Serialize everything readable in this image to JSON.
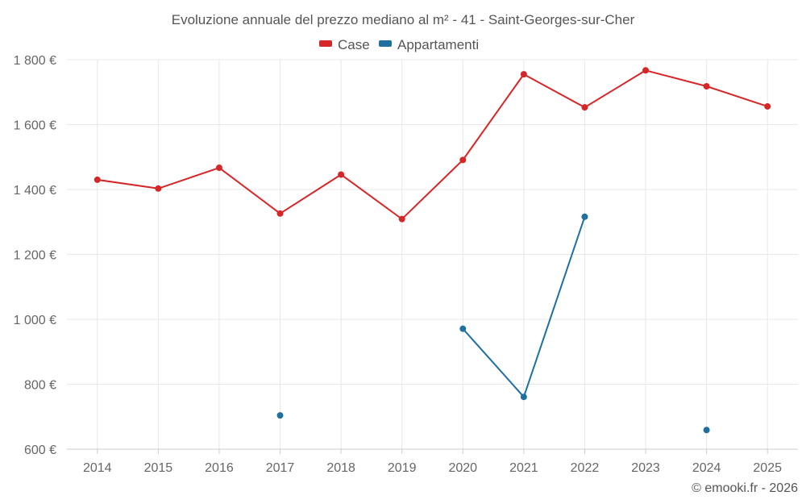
{
  "chart_data": {
    "type": "line",
    "title": "Evoluzione annuale del prezzo mediano al m² - 41 - Saint-Georges-sur-Cher",
    "categories": [
      "2014",
      "2015",
      "2016",
      "2017",
      "2018",
      "2019",
      "2020",
      "2021",
      "2022",
      "2023",
      "2024",
      "2025"
    ],
    "yticks": [
      600,
      800,
      1000,
      1200,
      1400,
      1600,
      1800
    ],
    "ytick_labels": [
      "600 €",
      "800 €",
      "1 000 €",
      "1 200 €",
      "1 400 €",
      "1 600 €",
      "1 800 €"
    ],
    "ylim": [
      600,
      1800
    ],
    "grid": true,
    "legend_position": "top-center",
    "series": [
      {
        "name": "Case",
        "color": "#d62728",
        "values": [
          1430,
          1403,
          1467,
          1326,
          1446,
          1309,
          1491,
          1755,
          1653,
          1767,
          1718,
          1656
        ]
      },
      {
        "name": "Appartamenti",
        "color": "#1f6f9f",
        "values": [
          null,
          null,
          null,
          704,
          null,
          null,
          971,
          761,
          1316,
          null,
          659,
          null
        ]
      }
    ],
    "credit": "© emooki.fr - 2026"
  }
}
